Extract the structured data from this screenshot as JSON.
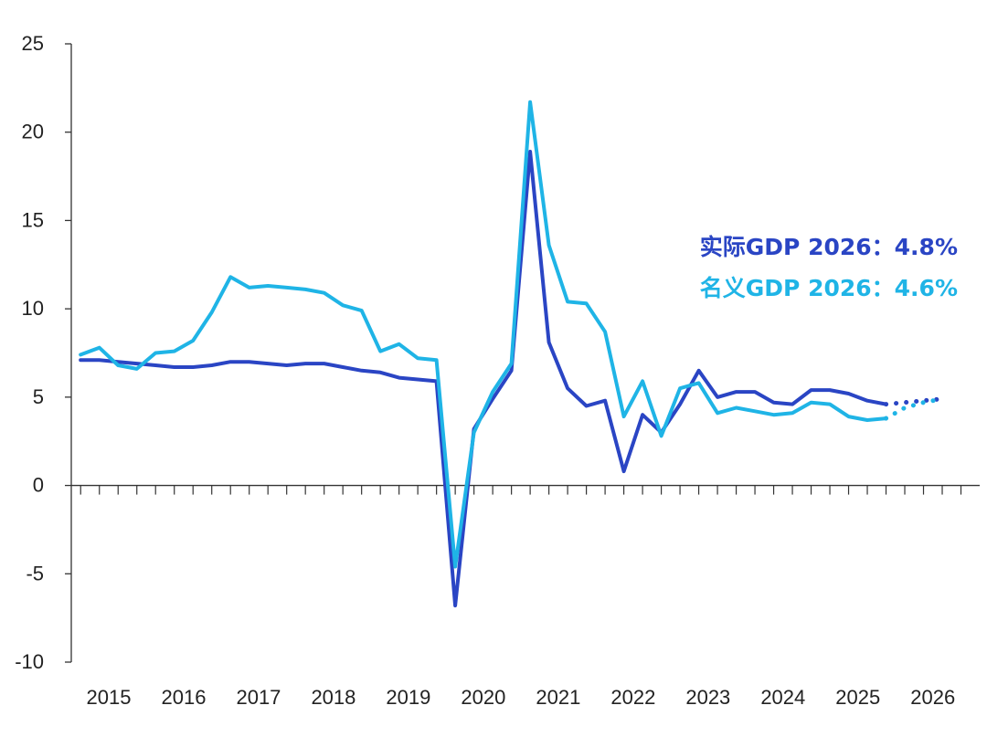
{
  "chart_data": {
    "type": "line",
    "title": "",
    "xlabel": "",
    "ylabel": "",
    "ylim": [
      -10,
      25
    ],
    "yticks": [
      -10,
      -5,
      0,
      5,
      10,
      15,
      20,
      25
    ],
    "ytick_labels": [
      "-10",
      "-5",
      "0",
      "5",
      "10",
      "15",
      "20",
      "25"
    ],
    "x_year_labels": [
      "2015",
      "2016",
      "2017",
      "2018",
      "2019",
      "2020",
      "2021",
      "2022",
      "2023",
      "2024",
      "2025",
      "2026"
    ],
    "x_start_year": 2015,
    "quarters_per_year": 4,
    "grid": false,
    "legend_position": "right",
    "series": [
      {
        "name": "实际GDP 2026：4.8%",
        "color": "#2a45c4",
        "values": [
          7.1,
          7.1,
          7.0,
          6.9,
          6.8,
          6.7,
          6.7,
          6.8,
          7.0,
          7.0,
          6.9,
          6.8,
          6.9,
          6.9,
          6.7,
          6.5,
          6.4,
          6.1,
          6.0,
          5.9,
          -6.8,
          3.2,
          4.9,
          6.5,
          18.9,
          8.1,
          5.5,
          4.5,
          4.8,
          0.8,
          4.0,
          3.0,
          4.6,
          6.5,
          5.0,
          5.3,
          5.3,
          4.7,
          4.6,
          5.4,
          5.4,
          5.2,
          4.8,
          4.6
        ],
        "forecast": [
          4.6,
          4.7,
          4.8,
          4.9
        ]
      },
      {
        "name": "名义GDP 2026：4.6%",
        "color": "#1fb4e6",
        "values": [
          7.4,
          7.8,
          6.8,
          6.6,
          7.5,
          7.6,
          8.2,
          9.8,
          11.8,
          11.2,
          11.3,
          11.2,
          11.1,
          10.9,
          10.2,
          9.9,
          7.6,
          8.0,
          7.2,
          7.1,
          -4.6,
          3.0,
          5.3,
          6.9,
          21.7,
          13.6,
          10.4,
          10.3,
          8.7,
          3.9,
          5.9,
          2.8,
          5.5,
          5.8,
          4.1,
          4.4,
          4.2,
          4.0,
          4.1,
          4.7,
          4.6,
          3.9,
          3.7,
          3.8
        ],
        "forecast": [
          3.8,
          4.4,
          4.7,
          4.9
        ]
      }
    ]
  }
}
